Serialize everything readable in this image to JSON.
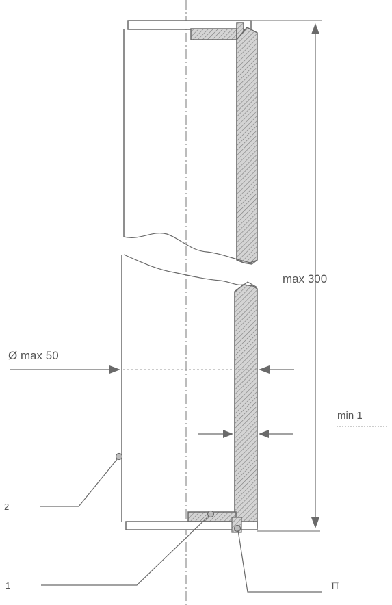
{
  "labels": {
    "height": "max 300",
    "diameter": "Ø max 50",
    "wall": "min 1",
    "item_2": "2",
    "item_1": "1",
    "item_pi": "П"
  },
  "colors": {
    "line": "#6a6a6a",
    "hatch_fill": "#c9c9c9",
    "text": "#555555"
  }
}
